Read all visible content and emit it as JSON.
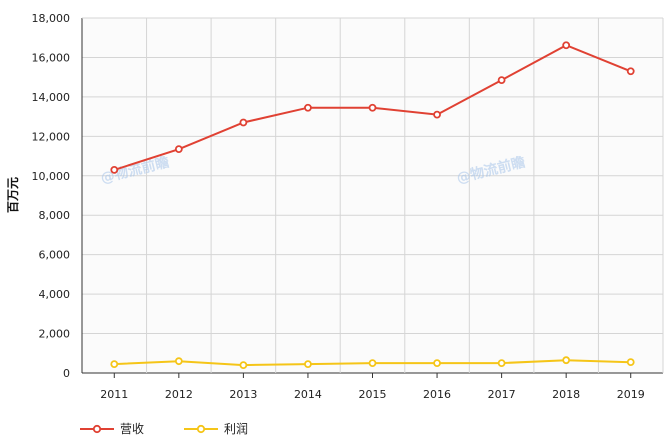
{
  "chart_data": {
    "type": "line",
    "categories": [
      "2011",
      "2012",
      "2013",
      "2014",
      "2015",
      "2016",
      "2017",
      "2018",
      "2019"
    ],
    "series": [
      {
        "name": "营收",
        "color": "#e04133",
        "values": [
          10300,
          11350,
          12700,
          13450,
          13450,
          13100,
          14850,
          16620,
          15300
        ]
      },
      {
        "name": "利润",
        "color": "#f5c518",
        "values": [
          450,
          600,
          400,
          450,
          500,
          500,
          500,
          650,
          550
        ]
      }
    ],
    "ylabel": "百万元",
    "ylim": [
      0,
      18000
    ],
    "yticks": [
      "0",
      "2,000",
      "4,000",
      "6,000",
      "8,000",
      "10,000",
      "12,000",
      "14,000",
      "16,000",
      "18,000"
    ],
    "grid": true,
    "legend_position": "bottom-left",
    "watermark": "@物流前瞻"
  }
}
